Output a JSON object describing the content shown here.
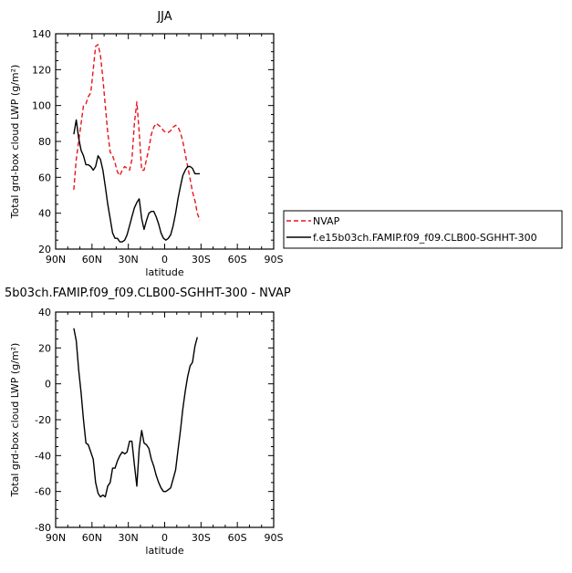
{
  "chart_data": [
    {
      "type": "line",
      "title": "JJA",
      "xlabel": "latitude",
      "ylabel": "Total grd-box cloud LWP (g/m²)",
      "xlim": [
        90,
        -90
      ],
      "ylim": [
        20,
        140
      ],
      "xticks": [
        {
          "v": 90,
          "label": "90N"
        },
        {
          "v": 60,
          "label": "60N"
        },
        {
          "v": 30,
          "label": "30N"
        },
        {
          "v": 0,
          "label": "0"
        },
        {
          "v": -30,
          "label": "30S"
        },
        {
          "v": -60,
          "label": "60S"
        },
        {
          "v": -90,
          "label": "90S"
        }
      ],
      "yticks": [
        20,
        40,
        60,
        80,
        100,
        120,
        140
      ],
      "grid": false,
      "legend": "right",
      "series": [
        {
          "name": "NVAP",
          "color": "#e8141c",
          "dash": "dashed",
          "points": [
            [
              75,
              53
            ],
            [
              73,
              70
            ],
            [
              71,
              80
            ],
            [
              69,
              90
            ],
            [
              67,
              100
            ],
            [
              65,
              101
            ],
            [
              63,
              105
            ],
            [
              61,
              107
            ],
            [
              59,
              120
            ],
            [
              57,
              133
            ],
            [
              55,
              134
            ],
            [
              53,
              128
            ],
            [
              51,
              115
            ],
            [
              49,
              100
            ],
            [
              47,
              85
            ],
            [
              45,
              74
            ],
            [
              43,
              72
            ],
            [
              41,
              68
            ],
            [
              39,
              63
            ],
            [
              37,
              61
            ],
            [
              35,
              64
            ],
            [
              33,
              66
            ],
            [
              31,
              65
            ],
            [
              29,
              64
            ],
            [
              27,
              70
            ],
            [
              25,
              90
            ],
            [
              23,
              102
            ],
            [
              21,
              85
            ],
            [
              19,
              64
            ],
            [
              17,
              64
            ],
            [
              15,
              70
            ],
            [
              13,
              76
            ],
            [
              11,
              84
            ],
            [
              9,
              88
            ],
            [
              7,
              90
            ],
            [
              5,
              89
            ],
            [
              3,
              88
            ],
            [
              1,
              86
            ],
            [
              -1,
              85
            ],
            [
              -3,
              85
            ],
            [
              -5,
              86
            ],
            [
              -7,
              88
            ],
            [
              -9,
              89
            ],
            [
              -11,
              88
            ],
            [
              -13,
              85
            ],
            [
              -15,
              80
            ],
            [
              -17,
              73
            ],
            [
              -19,
              66
            ],
            [
              -21,
              59
            ],
            [
              -23,
              52
            ],
            [
              -25,
              47
            ],
            [
              -27,
              40
            ],
            [
              -29,
              36
            ]
          ]
        },
        {
          "name": "f.e15b03ch.FAMIP.f09_f09.CLB00-SGHHT-300",
          "color": "#000000",
          "dash": "solid",
          "points": [
            [
              75,
              84
            ],
            [
              73,
              92
            ],
            [
              71,
              82
            ],
            [
              69,
              75
            ],
            [
              67,
              72
            ],
            [
              65,
              67
            ],
            [
              63,
              67
            ],
            [
              61,
              66
            ],
            [
              59,
              64
            ],
            [
              57,
              66
            ],
            [
              55,
              72
            ],
            [
              53,
              70
            ],
            [
              51,
              64
            ],
            [
              49,
              55
            ],
            [
              47,
              45
            ],
            [
              45,
              37
            ],
            [
              43,
              29
            ],
            [
              41,
              26
            ],
            [
              39,
              26
            ],
            [
              37,
              24
            ],
            [
              35,
              24
            ],
            [
              33,
              25
            ],
            [
              31,
              28
            ],
            [
              29,
              33
            ],
            [
              27,
              38
            ],
            [
              25,
              43
            ],
            [
              23,
              46
            ],
            [
              21,
              48
            ],
            [
              19,
              37
            ],
            [
              17,
              31
            ],
            [
              15,
              36
            ],
            [
              13,
              40
            ],
            [
              11,
              41
            ],
            [
              9,
              41
            ],
            [
              7,
              38
            ],
            [
              5,
              34
            ],
            [
              3,
              29
            ],
            [
              1,
              26
            ],
            [
              -1,
              25
            ],
            [
              -3,
              26
            ],
            [
              -5,
              28
            ],
            [
              -7,
              33
            ],
            [
              -9,
              40
            ],
            [
              -11,
              48
            ],
            [
              -13,
              55
            ],
            [
              -15,
              61
            ],
            [
              -17,
              64
            ],
            [
              -19,
              66
            ],
            [
              -21,
              66
            ],
            [
              -23,
              65
            ],
            [
              -25,
              62
            ],
            [
              -27,
              62
            ],
            [
              -29,
              62
            ]
          ]
        }
      ]
    },
    {
      "type": "line",
      "title": "5b03ch.FAMIP.f09_f09.CLB00-SGHHT-300 - NVAP",
      "xlabel": "latitude",
      "ylabel": "Total grd-box cloud LWP (g/m²)",
      "xlim": [
        90,
        -90
      ],
      "ylim": [
        -80,
        40
      ],
      "xticks": [
        {
          "v": 90,
          "label": "90N"
        },
        {
          "v": 60,
          "label": "60N"
        },
        {
          "v": 30,
          "label": "30N"
        },
        {
          "v": 0,
          "label": "0"
        },
        {
          "v": -30,
          "label": "30S"
        },
        {
          "v": -60,
          "label": "60S"
        },
        {
          "v": -90,
          "label": "90S"
        }
      ],
      "yticks": [
        -80,
        -60,
        -40,
        -20,
        0,
        20,
        40
      ],
      "grid": false,
      "series": [
        {
          "color": "#000000",
          "dash": "solid",
          "points": [
            [
              75,
              31
            ],
            [
              73,
              24
            ],
            [
              71,
              8
            ],
            [
              69,
              -5
            ],
            [
              67,
              -20
            ],
            [
              65,
              -33
            ],
            [
              63,
              -34
            ],
            [
              61,
              -38
            ],
            [
              59,
              -42
            ],
            [
              57,
              -55
            ],
            [
              55,
              -61
            ],
            [
              53,
              -63
            ],
            [
              51,
              -62
            ],
            [
              49,
              -63
            ],
            [
              47,
              -57
            ],
            [
              45,
              -55
            ],
            [
              43,
              -47
            ],
            [
              41,
              -47
            ],
            [
              39,
              -43
            ],
            [
              37,
              -40
            ],
            [
              35,
              -38
            ],
            [
              33,
              -39
            ],
            [
              31,
              -38
            ],
            [
              29,
              -32
            ],
            [
              27,
              -32
            ],
            [
              25,
              -45
            ],
            [
              23,
              -57
            ],
            [
              21,
              -36
            ],
            [
              19,
              -26
            ],
            [
              17,
              -33
            ],
            [
              15,
              -34
            ],
            [
              13,
              -36
            ],
            [
              11,
              -42
            ],
            [
              9,
              -46
            ],
            [
              7,
              -51
            ],
            [
              5,
              -55
            ],
            [
              3,
              -58
            ],
            [
              1,
              -60
            ],
            [
              -1,
              -60
            ],
            [
              -3,
              -59
            ],
            [
              -5,
              -58
            ],
            [
              -7,
              -53
            ],
            [
              -9,
              -48
            ],
            [
              -11,
              -37
            ],
            [
              -13,
              -26
            ],
            [
              -15,
              -14
            ],
            [
              -17,
              -4
            ],
            [
              -19,
              4
            ],
            [
              -21,
              10
            ],
            [
              -23,
              12
            ],
            [
              -25,
              21
            ],
            [
              -27,
              26
            ]
          ]
        }
      ]
    }
  ]
}
